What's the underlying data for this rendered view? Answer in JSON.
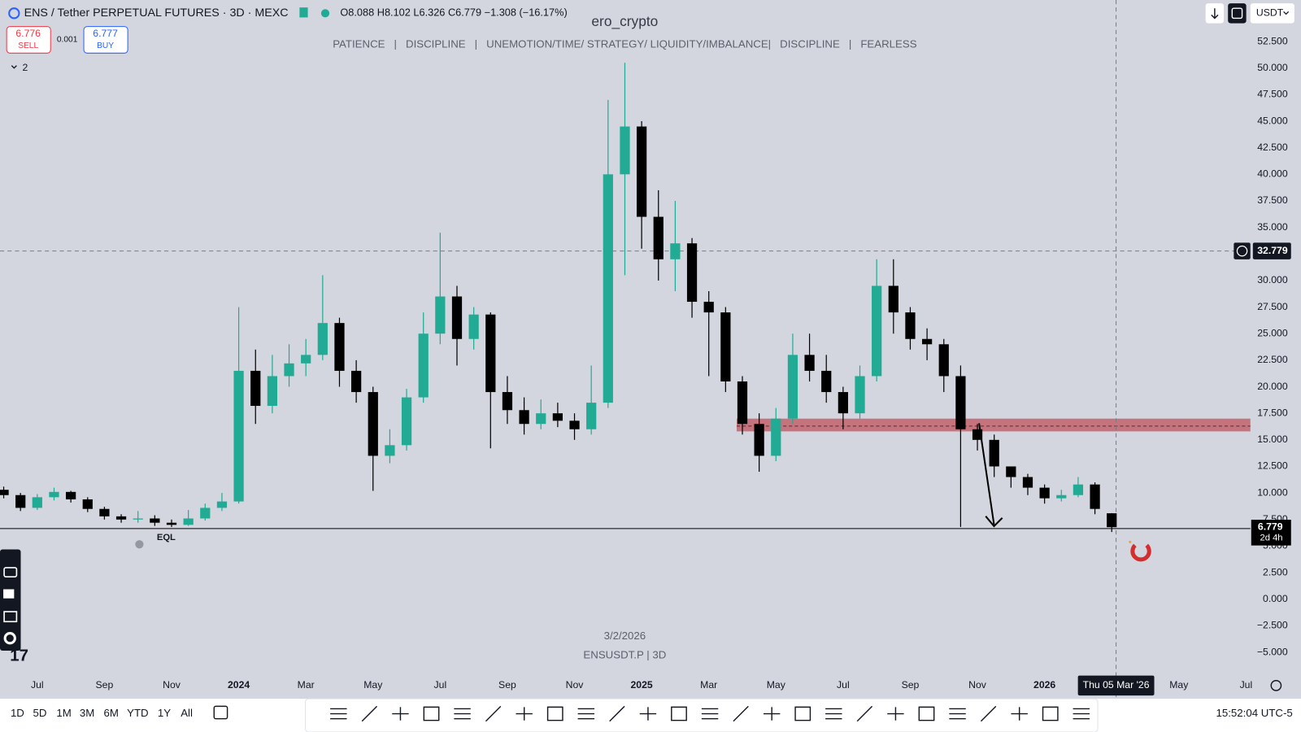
{
  "header": {
    "symbol": "ENS / Tether PERPETUAL FUTURES · 3D · MEXC",
    "open": "O8.088",
    "high": "H8.102",
    "low": "L6.326",
    "close": "C6.779",
    "change": "−1.308 (−16.17%)",
    "sell_price": "6.776",
    "sell_label": "SELL",
    "spread": "0.001",
    "buy_price": "6.777",
    "buy_label": "BUY",
    "indicators_count": "2",
    "currency": "USDT"
  },
  "watermark": {
    "author": "ero_crypto",
    "motto": "PATIENCE   |   DISCIPLINE   |   UNEMOTION/TIME/ STRATEGY/ LIQUIDITY/IMBALANCE|   DISCIPLINE   |   FEARLESS",
    "date": "3/2/2026",
    "ticker": "ENSUSDT.P | 3D"
  },
  "chart_data": {
    "type": "candlestick",
    "x": [
      -1,
      -0.5,
      0,
      0.5,
      1,
      1.5,
      2,
      2.5,
      3,
      3.5,
      4,
      4.5,
      5,
      5.5,
      6,
      6.5,
      7,
      7.5,
      8,
      8.5,
      9,
      9.5,
      10,
      10.5,
      11,
      11.5,
      12,
      12.5,
      13,
      13.5,
      14,
      14.5,
      15,
      15.5,
      16,
      16.5,
      17,
      17.5,
      18,
      18.5,
      19,
      19.5,
      20,
      20.5,
      21,
      21.5,
      22,
      22.5,
      23,
      23.5,
      24,
      24.5,
      25,
      25.5,
      26,
      26.5,
      27,
      27.5,
      28,
      28.5,
      29,
      29.5,
      30,
      30.5,
      31,
      31.5,
      32
    ],
    "open": [
      10.3,
      9.8,
      8.6,
      9.6,
      10.1,
      9.4,
      8.5,
      7.8,
      7.5,
      7.6,
      7.2,
      7.0,
      7.6,
      8.6,
      9.2,
      21.5,
      18.2,
      21.0,
      22.2,
      23.0,
      26.0,
      21.5,
      19.5,
      13.5,
      14.5,
      19.0,
      25.0,
      28.5,
      24.5,
      26.8,
      19.5,
      17.8,
      16.5,
      17.5,
      16.8,
      16.0,
      18.5,
      40.0,
      44.5,
      36.0,
      32.0,
      33.5,
      28.0,
      27.0,
      20.5,
      16.5,
      13.5,
      17.0,
      23.0,
      21.5,
      19.5,
      17.5,
      21.0,
      29.5,
      27.0,
      24.5,
      24.0,
      21.0,
      16.0,
      15.0,
      12.5,
      11.5,
      10.5,
      9.5,
      9.8,
      10.8,
      8.088
    ],
    "high": [
      10.6,
      10.0,
      9.9,
      10.5,
      10.2,
      9.6,
      8.7,
      8.0,
      8.3,
      7.9,
      7.5,
      8.4,
      9.0,
      10.0,
      27.5,
      23.5,
      23.0,
      24.0,
      24.5,
      30.5,
      26.5,
      22.5,
      20.0,
      16.0,
      19.8,
      27.0,
      34.5,
      29.5,
      27.5,
      27.0,
      21.0,
      19.0,
      18.8,
      18.5,
      17.5,
      22.0,
      47.0,
      50.5,
      45.0,
      38.5,
      37.5,
      34.0,
      29.0,
      27.5,
      21.0,
      17.5,
      18.0,
      25.0,
      25.0,
      23.0,
      20.0,
      22.0,
      32.0,
      32.0,
      27.5,
      25.5,
      24.5,
      22.0,
      16.5,
      15.5,
      12.5,
      11.8,
      10.8,
      10.3,
      11.5,
      11.0,
      8.102
    ],
    "low": [
      9.5,
      8.3,
      8.4,
      9.3,
      9.1,
      8.2,
      7.5,
      7.2,
      7.2,
      6.9,
      6.8,
      6.9,
      7.4,
      8.3,
      9.0,
      16.5,
      17.5,
      20.0,
      21.0,
      22.5,
      20.0,
      18.5,
      10.2,
      12.8,
      14.0,
      18.5,
      24.0,
      22.0,
      23.5,
      14.2,
      16.5,
      15.5,
      16.0,
      16.2,
      15.0,
      15.5,
      18.0,
      30.5,
      33.0,
      30.0,
      29.0,
      26.5,
      21.0,
      19.5,
      15.5,
      12.0,
      13.0,
      16.5,
      20.5,
      18.5,
      16.0,
      17.0,
      20.5,
      25.0,
      23.5,
      22.5,
      19.5,
      6.8,
      14.0,
      11.5,
      10.5,
      9.8,
      9.0,
      9.2,
      9.6,
      8.0,
      6.326
    ],
    "close": [
      9.8,
      8.6,
      9.6,
      10.1,
      9.4,
      8.5,
      7.8,
      7.5,
      7.6,
      7.2,
      7.0,
      7.6,
      8.6,
      9.2,
      21.5,
      18.2,
      21.0,
      22.2,
      23.0,
      26.0,
      21.5,
      19.5,
      13.5,
      14.5,
      19.0,
      25.0,
      28.5,
      24.5,
      26.8,
      19.5,
      17.8,
      16.5,
      17.5,
      16.8,
      16.0,
      18.5,
      40.0,
      44.5,
      36.0,
      32.0,
      33.5,
      28.0,
      27.0,
      20.5,
      16.5,
      13.5,
      17.0,
      23.0,
      21.5,
      19.5,
      17.5,
      21.0,
      29.5,
      27.0,
      24.5,
      24.0,
      21.0,
      16.0,
      15.0,
      12.5,
      11.5,
      10.5,
      9.5,
      9.8,
      10.8,
      8.5,
      6.779
    ],
    "up_color": "#22ab94",
    "down_color": "#000000",
    "xlim": [
      -1.11,
      36.13
    ],
    "xticks": [
      {
        "value": 0,
        "label": "Jul"
      },
      {
        "value": 2,
        "label": "Sep"
      },
      {
        "value": 4,
        "label": "Nov"
      },
      {
        "value": 6,
        "label": "2024"
      },
      {
        "value": 8,
        "label": "Mar"
      },
      {
        "value": 10,
        "label": "May"
      },
      {
        "value": 12,
        "label": "Jul"
      },
      {
        "value": 14,
        "label": "Sep"
      },
      {
        "value": 16,
        "label": "Nov"
      },
      {
        "value": 18,
        "label": "2025"
      },
      {
        "value": 20,
        "label": "Mar"
      },
      {
        "value": 22,
        "label": "May"
      },
      {
        "value": 24,
        "label": "Jul"
      },
      {
        "value": 26,
        "label": "Sep"
      },
      {
        "value": 28,
        "label": "Nov"
      },
      {
        "value": 30,
        "label": "2026"
      },
      {
        "value": 34,
        "label": "May"
      },
      {
        "value": 36,
        "label": "Jul"
      }
    ],
    "ylim": [
      -9.22,
      56.41
    ],
    "yticks": [
      {
        "value": 52.5,
        "label": "52.500"
      },
      {
        "value": 50,
        "label": "50.000"
      },
      {
        "value": 47.5,
        "label": "47.500"
      },
      {
        "value": 45,
        "label": "45.000"
      },
      {
        "value": 42.5,
        "label": "42.500"
      },
      {
        "value": 40,
        "label": "40.000"
      },
      {
        "value": 37.5,
        "label": "37.500"
      },
      {
        "value": 35,
        "label": "35.000"
      },
      {
        "value": 30,
        "label": "30.000"
      },
      {
        "value": 27.5,
        "label": "27.500"
      },
      {
        "value": 25,
        "label": "25.000"
      },
      {
        "value": 22.5,
        "label": "22.500"
      },
      {
        "value": 20,
        "label": "20.000"
      },
      {
        "value": 17.5,
        "label": "17.500"
      },
      {
        "value": 15,
        "label": "15.000"
      },
      {
        "value": 12.5,
        "label": "12.500"
      },
      {
        "value": 10,
        "label": "10.000"
      },
      {
        "value": 7.5,
        "label": "7.500"
      },
      {
        "value": 5,
        "label": "5.000"
      },
      {
        "value": 2.5,
        "label": "2.500"
      },
      {
        "value": 0,
        "label": "0.000"
      },
      {
        "value": -2.5,
        "label": "−2.500"
      },
      {
        "value": -5,
        "label": "−5.000"
      }
    ],
    "grid": false,
    "last_price": {
      "value": 6.779,
      "countdown": "2d 4h"
    },
    "crosshair": {
      "value": 32.779,
      "x": 32.13,
      "date_label": "Thu 05 Mar '26"
    },
    "zone": {
      "low": 15.8,
      "high": 17.0,
      "mid": 16.3,
      "x_start": 20.83,
      "color": "#c0525c"
    },
    "eql": {
      "label": "EQL",
      "value": 6.65
    }
  },
  "toolbar": {
    "timeframes": [
      "1D",
      "5D",
      "1M",
      "3M",
      "6M",
      "YTD",
      "1Y",
      "All"
    ],
    "clock": "15:52:04 UTC-5"
  }
}
